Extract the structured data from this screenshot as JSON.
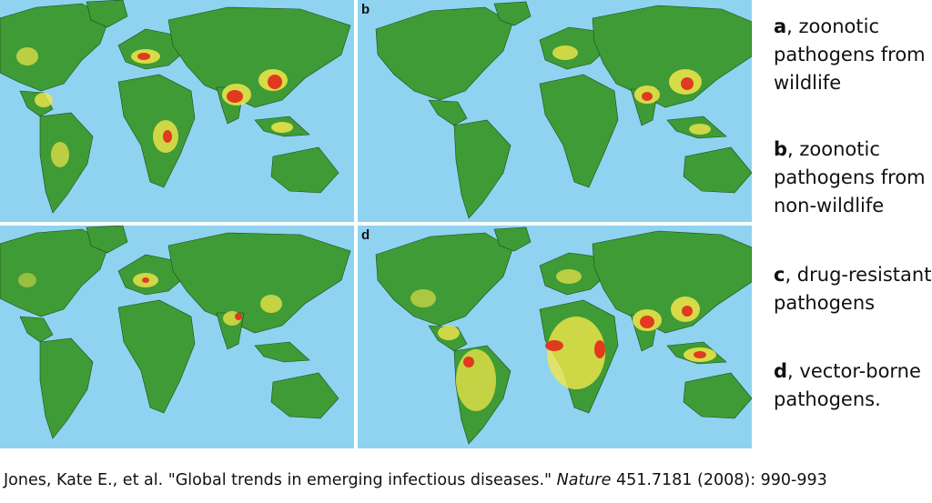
{
  "panels": [
    {
      "letter": "",
      "hotspot_color": "#e03b1e"
    },
    {
      "letter": "b",
      "hotspot_color": "#e03b1e"
    },
    {
      "letter": "",
      "hotspot_color": "#e03b1e"
    },
    {
      "letter": "d",
      "hotspot_color": "#e03b1e"
    }
  ],
  "colors": {
    "ocean": "#8fd3f0",
    "land": "#3f9b35",
    "border": "#1f4a1c",
    "risk_medium": "#f2e64a",
    "risk_high": "#e03b1e"
  },
  "legend": {
    "a": {
      "letter": "a",
      "line1": ", zoonotic",
      "line2": "pathogens from",
      "line3": "wildlife"
    },
    "b": {
      "letter": "b",
      "line1": ", zoonotic",
      "line2": "pathogens from",
      "line3": "non-wildlife"
    },
    "c": {
      "letter": "c",
      "line1": ", drug-resistant",
      "line2": "pathogens"
    },
    "d": {
      "letter": "d",
      "line1": ", vector-borne",
      "line2": "pathogens."
    }
  },
  "citation": {
    "before": "Jones, Kate E., et al. \"Global trends in emerging infectious diseases.\" ",
    "journal": "Nature",
    "after": " 451.7181 (2008): 990-993"
  }
}
